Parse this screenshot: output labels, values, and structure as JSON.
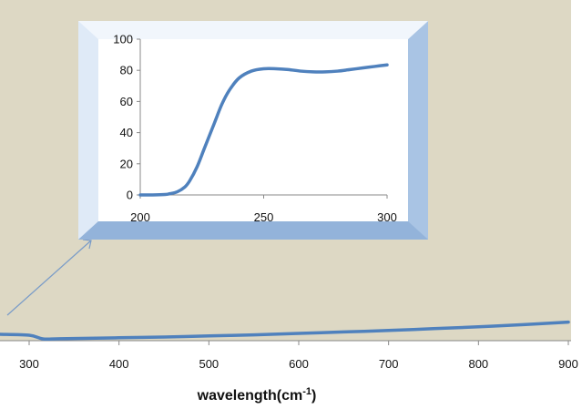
{
  "colors": {
    "plot_background": "#ddd8c4",
    "series": "#4f81bd",
    "inset_frame_light": "#e8f1fb",
    "inset_frame_dark": "#8fb0d8",
    "arrow": "#7a9cc8",
    "axis": "#888888",
    "text": "#111111"
  },
  "chart_data": [
    {
      "type": "line",
      "title": "",
      "xlabel": "wavelength(cm",
      "xlabel_superscript": "-1",
      "xlabel_suffix": ")",
      "ylabel": "",
      "xlim": [
        300,
        900
      ],
      "x_ticks": [
        300,
        400,
        500,
        600,
        700,
        800,
        900
      ],
      "grid": false,
      "legend": "none",
      "series": [
        {
          "x": [
            300,
            315,
            330,
            350,
            400,
            450,
            500,
            550,
            600,
            650,
            700,
            750,
            800,
            850,
            900
          ],
          "y": [
            0.02,
            0.0,
            0.0,
            0.002,
            0.006,
            0.01,
            0.016,
            0.022,
            0.03,
            0.038,
            0.046,
            0.056,
            0.066,
            0.078,
            0.092
          ]
        }
      ]
    },
    {
      "type": "line",
      "title": "",
      "xlabel": "",
      "ylabel": "",
      "xlim": [
        200,
        300
      ],
      "ylim": [
        0,
        100
      ],
      "x_ticks": [
        200,
        250,
        300
      ],
      "y_ticks": [
        0,
        20,
        40,
        60,
        80,
        100
      ],
      "grid": false,
      "legend": "none",
      "series": [
        {
          "x": [
            200,
            205,
            210,
            212,
            215,
            218,
            220,
            223,
            226,
            230,
            233,
            236,
            240,
            245,
            250,
            255,
            260,
            265,
            270,
            275,
            280,
            285,
            290,
            295,
            300
          ],
          "y": [
            0,
            0,
            0.3,
            0.8,
            2,
            5,
            9,
            18,
            30,
            46,
            58,
            67,
            75,
            79.5,
            81,
            81,
            80.5,
            79.5,
            79,
            79,
            79.5,
            80.5,
            81.5,
            82.5,
            83.5
          ]
        }
      ]
    }
  ]
}
